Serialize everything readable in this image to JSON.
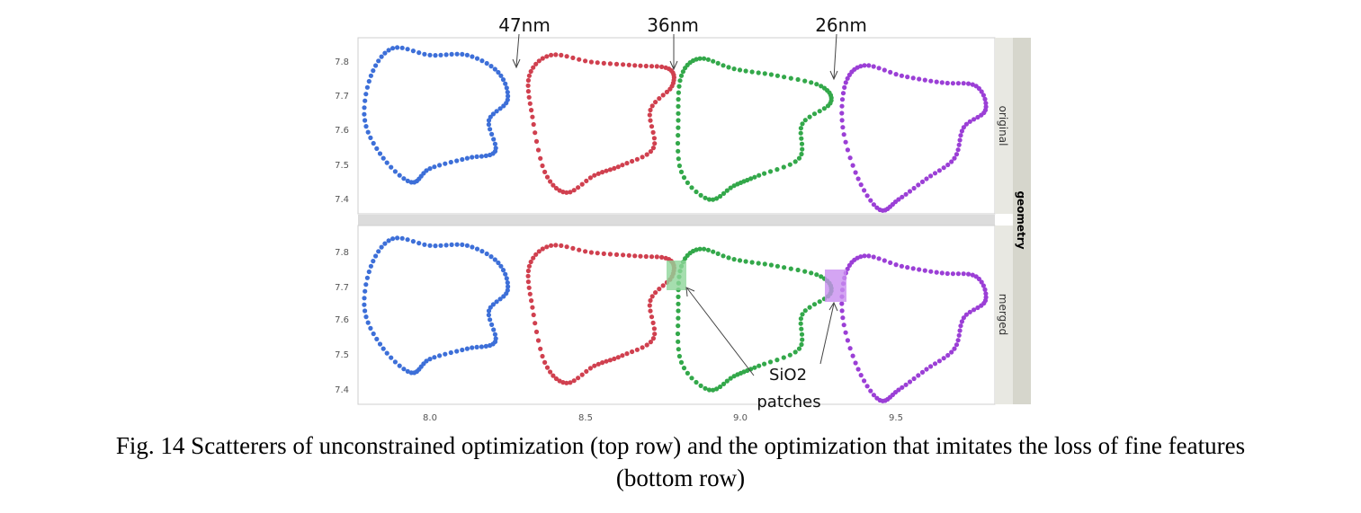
{
  "annotations": {
    "gap_labels": [
      "47nm",
      "36nm",
      "26nm"
    ],
    "patch_label_line1": "SiO2",
    "patch_label_line2": "patches"
  },
  "facet_labels": {
    "rows": [
      "original",
      "merged"
    ],
    "group": "geometry"
  },
  "caption": {
    "line1": "Fig. 14 Scatterers of unconstrained optimization (top row) and the optimization that imitates the loss of fine features",
    "line2": "(bottom row)"
  },
  "colors": {
    "scatterer_1": "#3d6fd8",
    "scatterer_2": "#d0404f",
    "scatterer_3": "#33a84a",
    "scatterer_4": "#9b3fd6",
    "patch_green": "#8fd69a",
    "patch_purple": "#c98ff0",
    "strip_bg": "#e8e8e2",
    "strip_dark": "#d6d6cc"
  },
  "chart_data": {
    "type": "scatter",
    "facets": [
      "original",
      "merged"
    ],
    "x_ticks": [
      "8.0",
      "8.5",
      "9.0",
      "9.5"
    ],
    "y_ticks": [
      "7.4",
      "7.5",
      "7.6",
      "7.7",
      "7.8"
    ],
    "xlim": [
      7.78,
      9.83
    ],
    "ylim": [
      7.37,
      7.86
    ],
    "grid": false,
    "series": [
      {
        "color": "#3d6fd8",
        "points": [
          [
            7.88,
            7.84
          ],
          [
            8.0,
            7.82
          ],
          [
            8.12,
            7.82
          ],
          [
            8.22,
            7.77
          ],
          [
            8.25,
            7.69
          ],
          [
            8.19,
            7.63
          ],
          [
            8.21,
            7.54
          ],
          [
            8.12,
            7.52
          ],
          [
            8.0,
            7.49
          ],
          [
            7.94,
            7.45
          ],
          [
            7.85,
            7.52
          ],
          [
            7.79,
            7.63
          ],
          [
            7.81,
            7.76
          ]
        ]
      },
      {
        "color": "#d0404f",
        "points": [
          [
            8.39,
            7.82
          ],
          [
            8.52,
            7.8
          ],
          [
            8.66,
            7.79
          ],
          [
            8.77,
            7.78
          ],
          [
            8.78,
            7.73
          ],
          [
            8.71,
            7.66
          ],
          [
            8.72,
            7.55
          ],
          [
            8.62,
            7.5
          ],
          [
            8.53,
            7.47
          ],
          [
            8.44,
            7.42
          ],
          [
            8.37,
            7.48
          ],
          [
            8.33,
            7.64
          ],
          [
            8.32,
            7.76
          ]
        ]
      },
      {
        "color": "#33a84a",
        "points": [
          [
            8.87,
            7.81
          ],
          [
            8.98,
            7.78
          ],
          [
            9.12,
            7.76
          ],
          [
            9.26,
            7.73
          ],
          [
            9.29,
            7.68
          ],
          [
            9.2,
            7.62
          ],
          [
            9.19,
            7.52
          ],
          [
            9.06,
            7.47
          ],
          [
            8.98,
            7.44
          ],
          [
            8.9,
            7.4
          ],
          [
            8.81,
            7.48
          ],
          [
            8.8,
            7.63
          ],
          [
            8.81,
            7.76
          ]
        ]
      },
      {
        "color": "#9b3fd6",
        "points": [
          [
            9.4,
            7.79
          ],
          [
            9.52,
            7.76
          ],
          [
            9.65,
            7.74
          ],
          [
            9.76,
            7.73
          ],
          [
            9.79,
            7.66
          ],
          [
            9.72,
            7.61
          ],
          [
            9.69,
            7.52
          ],
          [
            9.6,
            7.46
          ],
          [
            9.51,
            7.4
          ],
          [
            9.45,
            7.37
          ],
          [
            9.38,
            7.46
          ],
          [
            9.33,
            7.61
          ],
          [
            9.34,
            7.74
          ]
        ]
      }
    ]
  }
}
